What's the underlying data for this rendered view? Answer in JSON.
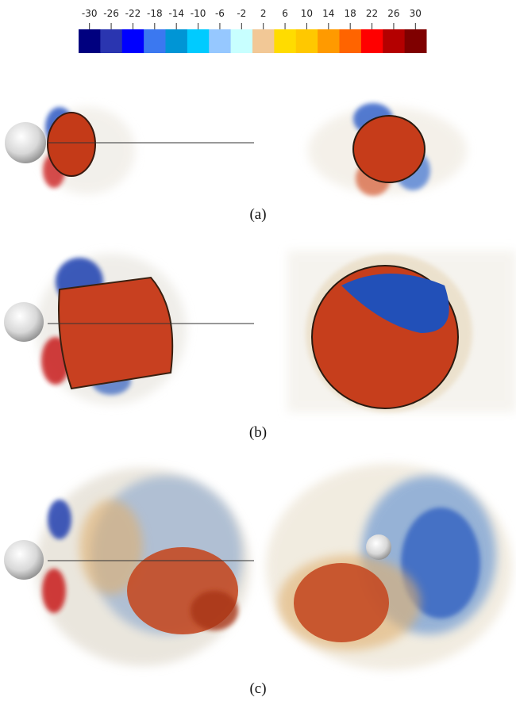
{
  "colorbar": {
    "ticks": [
      -30,
      -26,
      -22,
      -18,
      -14,
      -10,
      -6,
      -2,
      2,
      6,
      10,
      14,
      18,
      22,
      26,
      30
    ],
    "colors": [
      "#00007f",
      "#2a35b0",
      "#0000ff",
      "#3b78f0",
      "#0095d5",
      "#00cbff",
      "#96c8ff",
      "#c8ffff",
      "#f2c896",
      "#ffdc00",
      "#ffc800",
      "#ff9a00",
      "#ff6400",
      "#ff0000",
      "#b40000",
      "#7f0000"
    ]
  },
  "panels": [
    {
      "label": "(a)"
    },
    {
      "label": "(b)"
    },
    {
      "label": "(c)"
    }
  ]
}
